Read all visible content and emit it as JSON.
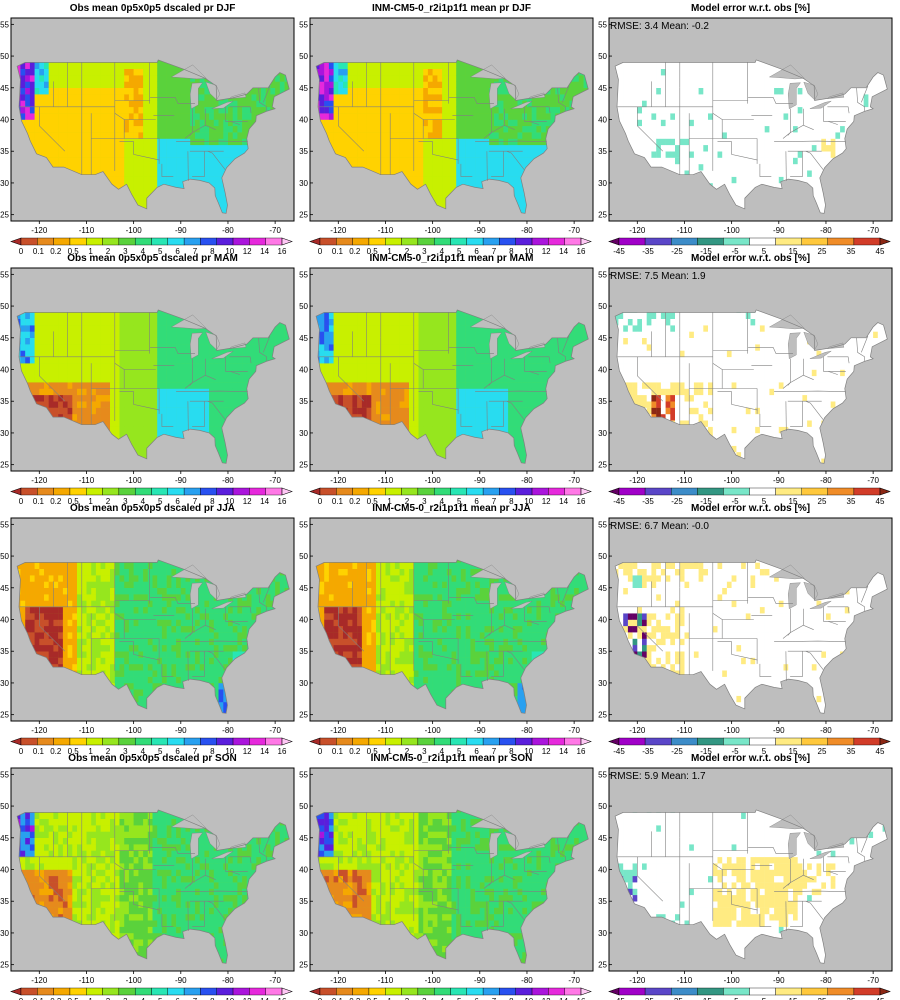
{
  "figure": {
    "panels": [
      {
        "title": "Obs mean 0p5x0p5 dscaled pr DJF",
        "kind": "clim",
        "stats": ""
      },
      {
        "title": "INM-CM5-0_r2i1p1f1 mean pr DJF",
        "kind": "clim",
        "stats": ""
      },
      {
        "title": "Model error w.r.t. obs [%]",
        "kind": "err",
        "stats": "RMSE: 3.4  Mean: -0.2"
      },
      {
        "title": "Obs mean 0p5x0p5 dscaled pr MAM",
        "kind": "clim",
        "stats": ""
      },
      {
        "title": "INM-CM5-0_r2i1p1f1 mean pr MAM",
        "kind": "clim",
        "stats": ""
      },
      {
        "title": "Model error w.r.t. obs [%]",
        "kind": "err",
        "stats": "RMSE: 7.5  Mean: 1.9"
      },
      {
        "title": "Obs mean 0p5x0p5 dscaled pr JJA",
        "kind": "clim",
        "stats": ""
      },
      {
        "title": "INM-CM5-0_r2i1p1f1 mean pr JJA",
        "kind": "clim",
        "stats": ""
      },
      {
        "title": "Model error w.r.t. obs [%]",
        "kind": "err",
        "stats": "RMSE: 6.7  Mean: -0.0"
      },
      {
        "title": "Obs mean 0p5x0p5 dscaled pr SON",
        "kind": "clim",
        "stats": ""
      },
      {
        "title": "INM-CM5-0_r2i1p1f1 mean pr SON",
        "kind": "clim",
        "stats": ""
      },
      {
        "title": "Model error w.r.t. obs [%]",
        "kind": "err",
        "stats": "RMSE: 5.9  Mean: 1.7"
      }
    ],
    "lon_ticks": [
      "-120",
      "-110",
      "-100",
      "-90",
      "-80",
      "-70"
    ],
    "lon_values": [
      -120,
      -110,
      -100,
      -90,
      -80,
      -70
    ],
    "lat_ticks": [
      "25",
      "30",
      "35",
      "40",
      "45",
      "50",
      "55"
    ],
    "lat_values": [
      25,
      30,
      35,
      40,
      45,
      50,
      55
    ],
    "lon_range": [
      -126,
      -66
    ],
    "lat_range": [
      24,
      56
    ],
    "clim_colorbar": {
      "labels": [
        "0",
        "0.1",
        "0.2",
        "0.5",
        "1",
        "2",
        "3",
        "4",
        "5",
        "6",
        "7",
        "8",
        "10",
        "12",
        "14",
        "16"
      ],
      "colors": [
        "#a82a28",
        "#c8502a",
        "#e68a1c",
        "#f5a800",
        "#ffd200",
        "#c8f000",
        "#96e61e",
        "#5ad23c",
        "#32dc78",
        "#28e6b4",
        "#28dcf0",
        "#28a0f0",
        "#2850f0",
        "#5a1edc",
        "#aa14dc",
        "#e628dc",
        "#ff78e6",
        "#ffc8f5"
      ]
    },
    "err_colorbar": {
      "labels": [
        "-45",
        "-35",
        "-25",
        "-15",
        "-5",
        "5",
        "15",
        "25",
        "35",
        "45"
      ],
      "colors": [
        "#640064",
        "#a000c8",
        "#5a46c8",
        "#3c8cc8",
        "#329682",
        "#78e6c8",
        "#ffffff",
        "#ffeb82",
        "#ffc83c",
        "#f08c28",
        "#d23c28",
        "#8c2814"
      ]
    },
    "land_colors": {
      "ocean": "#bebebe",
      "border": "#808080"
    }
  }
}
